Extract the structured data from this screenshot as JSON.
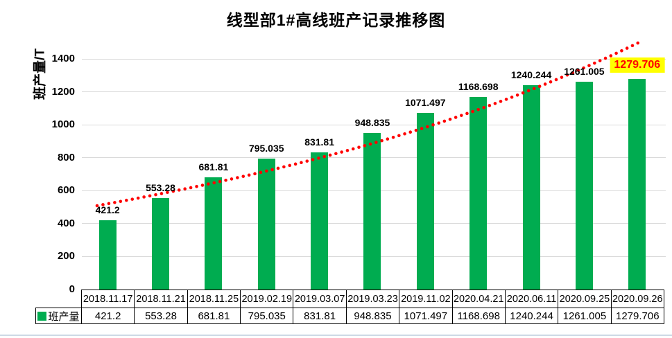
{
  "title": "线型部1#高线班产记录推移图",
  "y_axis": {
    "title": "班产量/T",
    "tick_labels": [
      "0",
      "200",
      "400",
      "600",
      "800",
      "1000",
      "1200",
      "1400"
    ]
  },
  "legend": {
    "label": "班产量",
    "swatch_color": "#00AC50"
  },
  "chart_data": {
    "type": "bar",
    "title": "线型部1#高线班产记录推移图",
    "ylabel": "班产量/T",
    "categories": [
      "2018.11.17",
      "2018.11.21",
      "2018.11.25",
      "2019.02.19",
      "2019.03.07",
      "2019.03.23",
      "2019.11.02",
      "2020.04.21",
      "2020.06.11",
      "2020.09.25",
      "2020.09.26"
    ],
    "series": [
      {
        "name": "班产量",
        "values": [
          421.2,
          553.28,
          681.81,
          795.035,
          831.81,
          948.835,
          1071.497,
          1168.698,
          1240.244,
          1261.005,
          1279.706
        ],
        "labels": [
          "421.2",
          "553.28",
          "681.81",
          "795.035",
          "831.81",
          "948.835",
          "1071.497",
          "1168.698",
          "1240.244",
          "1261.005",
          "1279.706"
        ],
        "color": "#00AC50"
      }
    ],
    "ylim": [
      0,
      1500
    ],
    "ytick_step": 200,
    "grid": true,
    "legend_position": "bottom-table",
    "trendline": {
      "style": "dotted",
      "color": "#FF0000"
    },
    "last_label_highlight": {
      "background": "#FFFF00",
      "text_color": "#FF0000"
    }
  }
}
